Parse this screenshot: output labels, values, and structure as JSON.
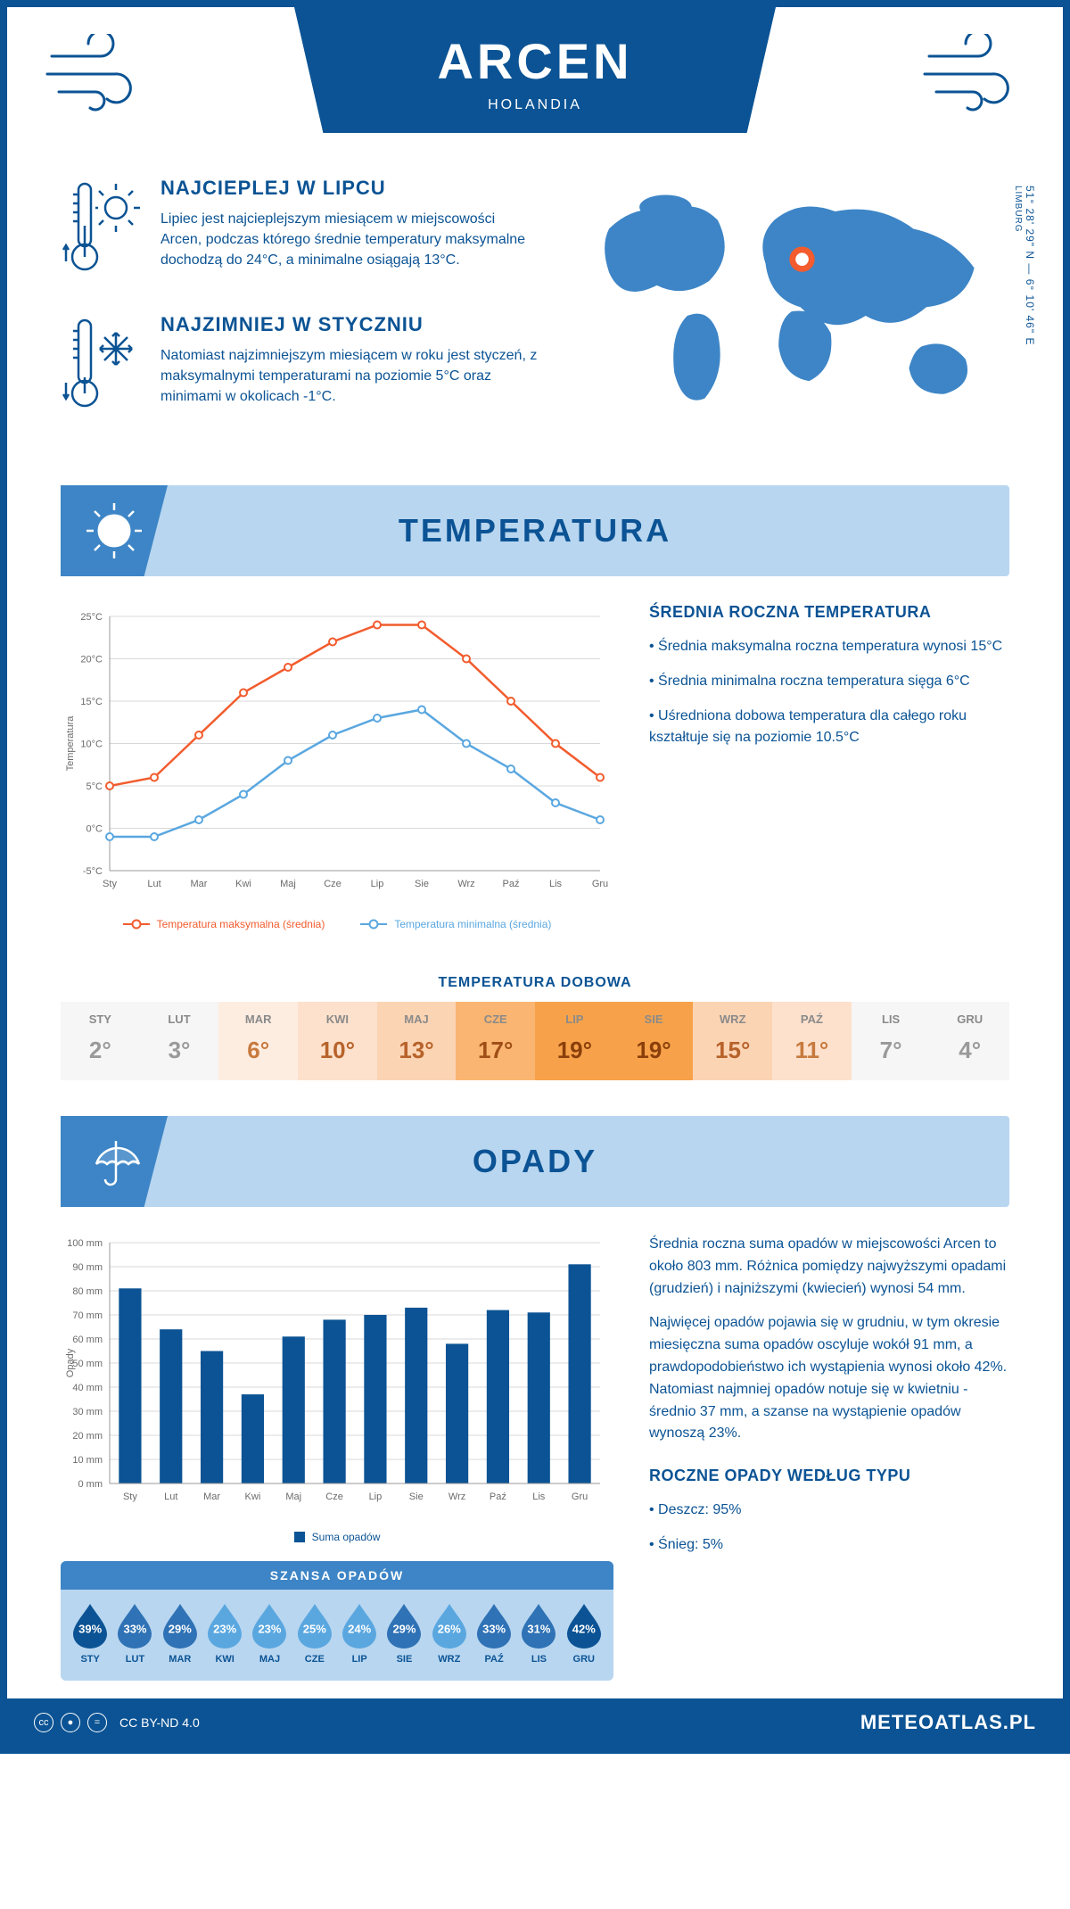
{
  "header": {
    "city": "ARCEN",
    "country": "HOLANDIA"
  },
  "coords": {
    "text": "51° 28' 29\" N — 6° 10' 46\" E",
    "region": "LIMBURG"
  },
  "facts": {
    "warm": {
      "title": "NAJCIEPLEJ W LIPCU",
      "body": "Lipiec jest najcieplejszym miesiącem w miejscowości Arcen, podczas którego średnie temperatury maksymalne dochodzą do 24°C, a minimalne osiągają 13°C."
    },
    "cold": {
      "title": "NAJZIMNIEJ W STYCZNIU",
      "body": "Natomiast najzimniejszym miesiącem w roku jest styczeń, z maksymalnymi temperaturami na poziomie 5°C oraz minimami w okolicach -1°C."
    }
  },
  "sections": {
    "temperature": "TEMPERATURA",
    "precipitation": "OPADY"
  },
  "temp_chart": {
    "type": "line",
    "months": [
      "Sty",
      "Lut",
      "Mar",
      "Kwi",
      "Maj",
      "Cze",
      "Lip",
      "Sie",
      "Wrz",
      "Paź",
      "Lis",
      "Gru"
    ],
    "max_series": [
      5,
      6,
      11,
      16,
      19,
      22,
      24,
      24,
      20,
      15,
      10,
      6
    ],
    "min_series": [
      -1,
      -1,
      1,
      4,
      8,
      11,
      13,
      14,
      10,
      7,
      3,
      1
    ],
    "max_color": "#f25c2e",
    "min_color": "#5aa7e0",
    "grid_color": "#d8d8d8",
    "ylim": [
      -5,
      25
    ],
    "ytick_step": 5,
    "ylabel": "Temperatura",
    "legend_max": "Temperatura maksymalna (średnia)",
    "legend_min": "Temperatura minimalna (średnia)"
  },
  "temp_desc": {
    "heading": "ŚREDNIA ROCZNA TEMPERATURA",
    "items": [
      "Średnia maksymalna roczna temperatura wynosi 15°C",
      "Średnia minimalna roczna temperatura sięga 6°C",
      "Uśredniona dobowa temperatura dla całego roku kształtuje się na poziomie 10.5°C"
    ]
  },
  "daily_temp": {
    "title": "TEMPERATURA DOBOWA",
    "months": [
      "STY",
      "LUT",
      "MAR",
      "KWI",
      "MAJ",
      "CZE",
      "LIP",
      "SIE",
      "WRZ",
      "PAŹ",
      "LIS",
      "GRU"
    ],
    "values": [
      "2°",
      "3°",
      "6°",
      "10°",
      "13°",
      "17°",
      "19°",
      "19°",
      "15°",
      "11°",
      "7°",
      "4°"
    ],
    "bg_colors": [
      "#f6f6f6",
      "#f6f6f6",
      "#fdede1",
      "#fde1cc",
      "#fbd4b4",
      "#f9b571",
      "#f7a24a",
      "#f7a24a",
      "#fbd4b4",
      "#fde1cc",
      "#f6f6f6",
      "#f6f6f6"
    ],
    "text_colors": [
      "#9a9a9a",
      "#9a9a9a",
      "#c77a3e",
      "#b7622a",
      "#b7622a",
      "#a04e17",
      "#8a3f0b",
      "#8a3f0b",
      "#b7622a",
      "#c77a3e",
      "#9a9a9a",
      "#9a9a9a"
    ]
  },
  "precip_chart": {
    "type": "bar",
    "months": [
      "Sty",
      "Lut",
      "Mar",
      "Kwi",
      "Maj",
      "Cze",
      "Lip",
      "Sie",
      "Wrz",
      "Paź",
      "Lis",
      "Gru"
    ],
    "values": [
      81,
      64,
      55,
      37,
      61,
      68,
      70,
      73,
      58,
      72,
      71,
      91
    ],
    "bar_color": "#0b5394",
    "grid_color": "#d8d8d8",
    "ylim": [
      0,
      100
    ],
    "ytick_step": 10,
    "ylabel": "Opady",
    "legend": "Suma opadów"
  },
  "precip_desc": {
    "para1": "Średnia roczna suma opadów w miejscowości Arcen to około 803 mm. Różnica pomiędzy najwyższymi opadami (grudzień) i najniższymi (kwiecień) wynosi 54 mm.",
    "para2": "Najwięcej opadów pojawia się w grudniu, w tym okresie miesięczna suma opadów oscyluje wokół 91 mm, a prawdopodobieństwo ich wystąpienia wynosi około 42%. Natomiast najmniej opadów notuje się w kwietniu - średnio 37 mm, a szanse na wystąpienie opadów wynoszą 23%.",
    "type_heading": "ROCZNE OPADY WEDŁUG TYPU",
    "type_items": [
      "Deszcz: 95%",
      "Śnieg: 5%"
    ]
  },
  "chance": {
    "heading": "SZANSA OPADÓW",
    "months": [
      "STY",
      "LUT",
      "MAR",
      "KWI",
      "MAJ",
      "CZE",
      "LIP",
      "SIE",
      "WRZ",
      "PAŹ",
      "LIS",
      "GRU"
    ],
    "values": [
      39,
      33,
      29,
      23,
      23,
      25,
      24,
      29,
      26,
      33,
      31,
      42
    ],
    "drop_color_dark": "#0b5394",
    "drop_color_light": "#5aa7e0"
  },
  "footer": {
    "license": "CC BY-ND 4.0",
    "brand": "METEOATLAS.PL"
  }
}
